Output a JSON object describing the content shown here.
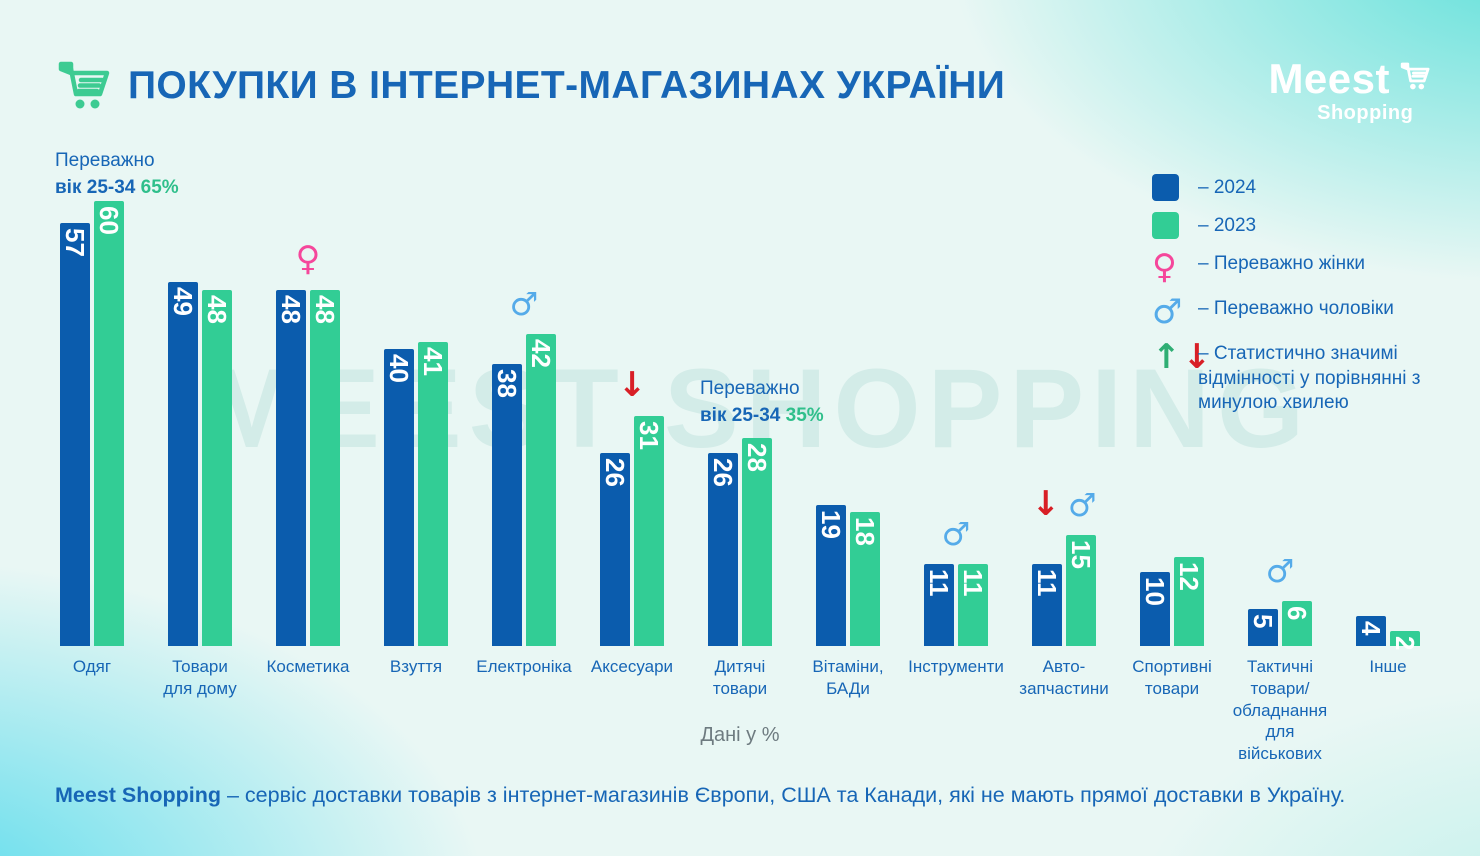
{
  "theme": {
    "title": "#1766b6",
    "bar2024": "#0b5cad",
    "bar2023": "#32cd95",
    "pink": "#f5479b",
    "lightblue": "#55abe9",
    "red": "#d81f26",
    "greenarrow": "#2fae74",
    "percentgreen": "#2fbf8b",
    "gray": "#6e7b80",
    "cartgreen": "#3dcb92"
  },
  "icons": {
    "female": "♀",
    "male": "♂",
    "up": "↑",
    "down": "↓"
  },
  "header": {
    "title": "ПОКУПКИ В ІНТЕРНЕТ-МАГАЗИНАХ УКРАЇНИ"
  },
  "logo": {
    "name": "Meest",
    "sub": "Shopping"
  },
  "watermark": "MEEST SHOPPING",
  "legend": {
    "items": [
      {
        "type": "swatch-2024",
        "label": "– 2024"
      },
      {
        "type": "swatch-2023",
        "label": "– 2023"
      },
      {
        "type": "female",
        "label": "– Переважно жінки"
      },
      {
        "type": "male",
        "label": "– Переважно чоловіки"
      },
      {
        "type": "arrows",
        "label": "– Статистично значимі відмінності у порівнянні з минулою хвилею"
      }
    ]
  },
  "annotations": [
    {
      "line1": "Переважно",
      "line2_bold": "вік 25-34",
      "percent": "65%"
    },
    {
      "line1": "Переважно",
      "line2_bold": "вік 25-34",
      "percent": "35%"
    }
  ],
  "chart_data": {
    "type": "bar",
    "unit": "percent",
    "xlabel": "Дані у %",
    "ylim": [
      0,
      60
    ],
    "categories": [
      "Одяг",
      "Товари\nдля дому",
      "Косметика",
      "Взуття",
      "Електроніка",
      "Аксесуари",
      "Дитячі\nтовари",
      "Вітаміни,\nБАДи",
      "Інструменти",
      "Авто-\nзапчастини",
      "Спортивні\nтовари",
      "Тактичні\nтовари/\nобладнання\nдля військових",
      "Інше"
    ],
    "series": [
      {
        "name": "2024",
        "color": "#0b5cad",
        "values": [
          57,
          49,
          48,
          40,
          38,
          26,
          26,
          19,
          11,
          11,
          10,
          5,
          4
        ]
      },
      {
        "name": "2023",
        "color": "#32cd95",
        "values": [
          60,
          48,
          48,
          41,
          42,
          31,
          28,
          18,
          11,
          15,
          12,
          6,
          2
        ]
      }
    ],
    "markers": [
      [],
      [],
      [
        "female"
      ],
      [],
      [
        "male"
      ],
      [
        "down"
      ],
      [],
      [],
      [
        "male"
      ],
      [
        "down",
        "male"
      ],
      [],
      [
        "male"
      ],
      []
    ],
    "legend_position": "top-right"
  },
  "footer": {
    "bold": "Meest Shopping",
    "text": " – сервіс доставки товарів з інтернет-магазинів Європи, США та Канади, які не мають прямої доставки в Україну."
  }
}
